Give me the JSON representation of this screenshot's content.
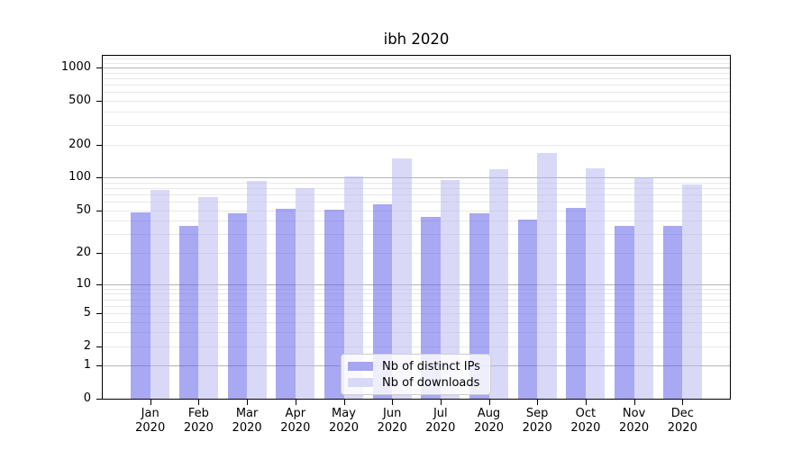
{
  "title": "ibh 2020",
  "chart_data": {
    "type": "bar",
    "title": "ibh 2020",
    "categories": [
      "Jan",
      "Feb",
      "Mar",
      "Apr",
      "May",
      "Jun",
      "Jul",
      "Aug",
      "Sep",
      "Oct",
      "Nov",
      "Dec"
    ],
    "category_year": "2020",
    "series": [
      {
        "name": "Nb of distinct IPs",
        "values": [
          48,
          36,
          47,
          52,
          51,
          57,
          44,
          47,
          41,
          53,
          36,
          36
        ]
      },
      {
        "name": "Nb of downloads",
        "values": [
          78,
          67,
          94,
          81,
          102,
          150,
          96,
          120,
          167,
          122,
          100,
          87
        ]
      }
    ],
    "xlabel": "",
    "ylabel": "",
    "yscale": "log1p",
    "yticks": [
      0,
      1,
      2,
      5,
      10,
      20,
      50,
      100,
      200,
      500,
      1000
    ],
    "ylim": [
      0,
      1320
    ],
    "grid": "both",
    "legend_position": "lower-center-inside"
  },
  "legend": {
    "items": [
      {
        "label": "Nb of distinct IPs",
        "color": "#a5a5f1"
      },
      {
        "label": "Nb of downloads",
        "color": "#d9d9f7"
      }
    ]
  },
  "colors": {
    "bar_ips": "rgba(82,82,232,0.5)",
    "bar_downloads": "rgba(180,180,240,0.5)",
    "major_grid": "#b4b4b4",
    "minor_grid": "#e8e8e8",
    "spine": "#000000",
    "text": "#000000",
    "legend_border": "#cccccc",
    "legend_bg": "rgba(255,255,255,0.8)"
  }
}
